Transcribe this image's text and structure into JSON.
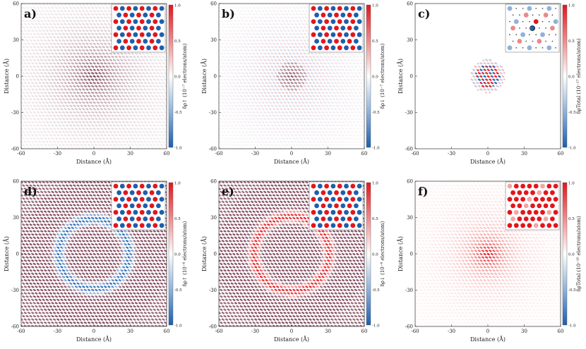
{
  "figure": {
    "colorbar_ticks": [
      "1.0",
      "0.5",
      "0.0",
      "-0.5",
      "-1.0"
    ],
    "colors": {
      "positive": "#e3161b",
      "negative": "#1c5fae",
      "neutral": "#ffffff",
      "dark": "#6b2740"
    }
  },
  "chart_data": [
    {
      "type": "heatmap",
      "panel": "a)",
      "pattern": "central_blob",
      "x_ticks": [
        "-60",
        "-30",
        "0",
        "30",
        "60"
      ],
      "y_ticks": [
        "60",
        "30",
        "0",
        "-30",
        "-60"
      ],
      "xlabel": "Distance (Å)",
      "ylabel": "Distance (Å)",
      "xlim": [
        -60,
        60
      ],
      "ylim": [
        -60,
        60
      ],
      "clim": [
        -1.0,
        1.0
      ],
      "colorbar_label": "δρ↑ (10⁻⁷ electrons/atom)",
      "inset": "alternating red/blue sublattice rows"
    },
    {
      "type": "heatmap",
      "panel": "b)",
      "pattern": "central_blob_weak",
      "x_ticks": [
        "-60",
        "-30",
        "0",
        "30",
        "60"
      ],
      "y_ticks": [
        "60",
        "30",
        "0",
        "-30",
        "-60"
      ],
      "xlabel": "Distance (Å)",
      "ylabel": "Distance (Å)",
      "xlim": [
        -60,
        60
      ],
      "ylim": [
        -60,
        60
      ],
      "clim": [
        -1.0,
        1.0
      ],
      "colorbar_label": "δρ↓ (10⁻⁷ electrons/atom)",
      "inset": "alternating red/blue sublattice rows"
    },
    {
      "type": "heatmap",
      "panel": "c)",
      "pattern": "localized_center",
      "x_ticks": [
        "-60",
        "-30",
        "0",
        "30",
        "60"
      ],
      "y_ticks": [
        "60",
        "30",
        "0",
        "-30",
        "-60"
      ],
      "xlabel": "Distance (Å)",
      "ylabel": "Distance (Å)",
      "xlim": [
        -60,
        60
      ],
      "ylim": [
        -60,
        60
      ],
      "clim": [
        -1.0,
        1.0
      ],
      "colorbar_label": "δρTotal (10⁻¹⁷ electrons/atom)",
      "inset": "sparse sites around a central impurity"
    },
    {
      "type": "heatmap",
      "panel": "d)",
      "pattern": "ring_negative",
      "x_ticks": [
        "-60",
        "-30",
        "0",
        "30",
        "60"
      ],
      "y_ticks": [
        "60",
        "30",
        "0",
        "-30",
        "-60"
      ],
      "xlabel": "Distance (Å)",
      "ylabel": "Distance (Å)",
      "xlim": [
        -60,
        60
      ],
      "ylim": [
        -60,
        60
      ],
      "clim": [
        -1.0,
        1.0
      ],
      "colorbar_label": "δρ↑ (10⁻⁴ electrons/atom)",
      "inset": "alternating red/blue sublattice rows"
    },
    {
      "type": "heatmap",
      "panel": "e)",
      "pattern": "ring_positive",
      "x_ticks": [
        "-60",
        "-30",
        "0",
        "30",
        "60"
      ],
      "y_ticks": [
        "60",
        "30",
        "0",
        "-30",
        "-60"
      ],
      "xlabel": "Distance (Å)",
      "ylabel": "Distance (Å)",
      "xlim": [
        -60,
        60
      ],
      "ylim": [
        -60,
        60
      ],
      "clim": [
        -1.0,
        1.0
      ],
      "colorbar_label": "δρ↓ (10⁻⁴ electrons/atom)",
      "inset": "alternating red/blue sublattice rows"
    },
    {
      "type": "heatmap",
      "panel": "f)",
      "pattern": "central_positive",
      "x_ticks": [
        "-60",
        "-30",
        "0",
        "30",
        "60"
      ],
      "y_ticks": [
        "60",
        "30",
        "0",
        "-30",
        "-60"
      ],
      "xlabel": "Distance (Å)",
      "ylabel": "Distance (Å)",
      "xlim": [
        -60,
        60
      ],
      "ylim": [
        -60,
        60
      ],
      "clim": [
        -1.0,
        1.0
      ],
      "colorbar_label": "δρTotal (10⁻¹⁰ electrons/atom)",
      "inset": "mostly red sites"
    }
  ]
}
